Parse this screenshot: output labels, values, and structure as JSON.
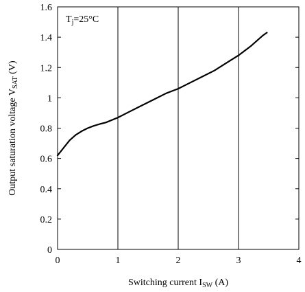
{
  "chart_data": {
    "type": "line",
    "title": "",
    "annotation": {
      "base": "T",
      "sub": "j",
      "rest": "=25°C"
    },
    "xlabel": {
      "base": "Switching current  I",
      "sub": "SW",
      "rest": " (A)"
    },
    "ylabel": {
      "base": "Output saturation voltage V",
      "sub": "SAT",
      "rest": " (V)"
    },
    "xlim": [
      0,
      4
    ],
    "ylim": [
      0,
      1.6
    ],
    "x_ticks": [
      0,
      1,
      2,
      3,
      4
    ],
    "x_tick_labels": [
      "0",
      "1",
      "2",
      "3",
      "4"
    ],
    "y_ticks": [
      0,
      0.2,
      0.4,
      0.6,
      0.8,
      1.0,
      1.2,
      1.4,
      1.6
    ],
    "y_tick_labels": [
      "0",
      "0.2",
      "0.4",
      "0.6",
      "0.8",
      "1",
      "1.2",
      "1.4",
      "1.6"
    ],
    "grid": {
      "vertical": "major",
      "horizontal": "major"
    },
    "series": [
      {
        "x": [
          0.0,
          0.1,
          0.2,
          0.3,
          0.4,
          0.5,
          0.6,
          0.7,
          0.8,
          1.0,
          1.2,
          1.4,
          1.6,
          1.8,
          2.0,
          2.2,
          2.4,
          2.6,
          2.8,
          3.0,
          3.2,
          3.4,
          3.47
        ],
        "y": [
          0.62,
          0.67,
          0.72,
          0.755,
          0.78,
          0.8,
          0.815,
          0.827,
          0.837,
          0.87,
          0.91,
          0.95,
          0.99,
          1.03,
          1.06,
          1.1,
          1.14,
          1.18,
          1.23,
          1.28,
          1.34,
          1.41,
          1.43
        ],
        "color": "#000000"
      }
    ]
  }
}
